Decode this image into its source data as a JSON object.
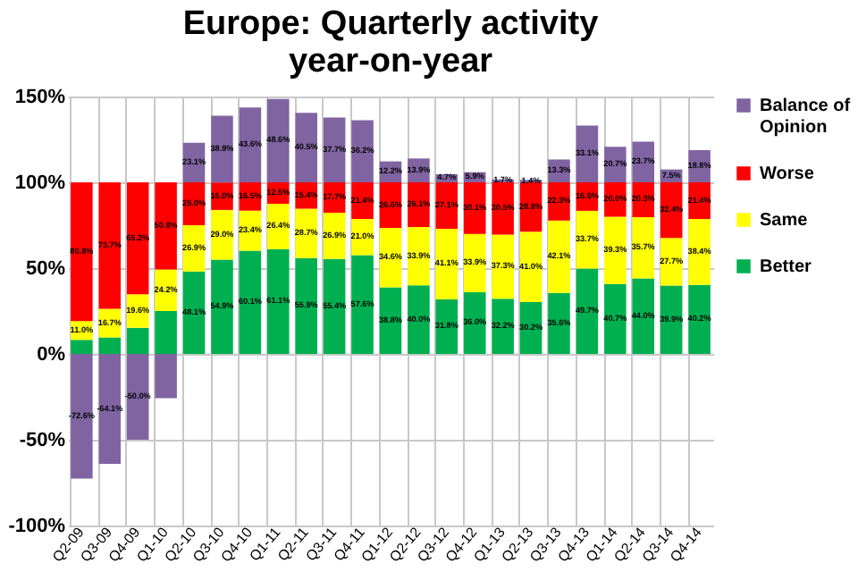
{
  "chart_data": {
    "type": "bar",
    "stacked": true,
    "title": "Europe: Quarterly activity year-on-year",
    "categories": [
      "Q2-09",
      "Q3-09",
      "Q4-09",
      "Q1-10",
      "Q2-10",
      "Q3-10",
      "Q4-10",
      "Q1-11",
      "Q2-11",
      "Q3-11",
      "Q4-11",
      "Q1-12",
      "Q2-12",
      "Q3-12",
      "Q4-12",
      "Q1-13",
      "Q2-13",
      "Q3-13",
      "Q4-13",
      "Q1-14",
      "Q2-14",
      "Q3-14",
      "Q4-14"
    ],
    "series": [
      {
        "name": "Better",
        "color": "#00b050",
        "values": [
          8.2,
          9.6,
          15.2,
          25.0,
          48.1,
          54.9,
          60.1,
          61.1,
          55.9,
          55.4,
          57.6,
          38.8,
          40.0,
          31.8,
          36.0,
          32.2,
          30.2,
          35.6,
          49.7,
          40.7,
          44.0,
          39.9,
          40.2
        ],
        "value_labels": [
          null,
          null,
          null,
          null,
          "48.1%",
          "54.9%",
          "60.1%",
          "61.1%",
          "55.9%",
          "55.4%",
          "57.6%",
          "38.8%",
          "40.0%",
          "31.8%",
          "36.0%",
          "32.2%",
          "30.2%",
          "35.6%",
          "49.7%",
          "40.7%",
          "44.0%",
          "39.9%",
          "40.2%"
        ]
      },
      {
        "name": "Same",
        "color": "#ffff00",
        "values": [
          11.0,
          16.7,
          19.6,
          24.2,
          26.9,
          29.0,
          23.4,
          26.4,
          28.7,
          26.9,
          21.0,
          34.6,
          33.9,
          41.1,
          33.9,
          37.3,
          41.0,
          42.1,
          33.7,
          39.3,
          35.7,
          27.7,
          38.4
        ],
        "value_labels": [
          "11.0%",
          "16.7%",
          "19.6%",
          "24.2%",
          "26.9%",
          "29.0%",
          "23.4%",
          "26.4%",
          "28.7%",
          "26.9%",
          "21.0%",
          "34.6%",
          "33.9%",
          "41.1%",
          "33.9%",
          "37.3%",
          "41.0%",
          "42.1%",
          "33.7%",
          "39.3%",
          "35.7%",
          "27.7%",
          "38.4%"
        ]
      },
      {
        "name": "Worse",
        "color": "#ff0000",
        "values": [
          80.8,
          73.7,
          65.2,
          50.8,
          25.0,
          16.0,
          16.5,
          12.5,
          15.4,
          17.7,
          21.4,
          26.6,
          26.1,
          27.1,
          30.1,
          30.5,
          28.8,
          22.3,
          16.6,
          20.0,
          20.3,
          32.4,
          21.4
        ],
        "value_labels": [
          "80.8%",
          "73.7%",
          "65.2%",
          "50.8%",
          "25.0%",
          "16.0%",
          "16.5%",
          "12.5%",
          "15.4%",
          "17.7%",
          "21.4%",
          "26.6%",
          "26.1%",
          "27.1%",
          "30.1%",
          "30.5%",
          "28.8%",
          "22.3%",
          "16.6%",
          "20.0%",
          "20.3%",
          "32.4%",
          "21.4%"
        ]
      },
      {
        "name": "Balance of Opinion",
        "color": "#8064a2",
        "values": [
          -72.6,
          -64.1,
          -50.0,
          -25.8,
          23.1,
          38.9,
          43.6,
          48.6,
          40.5,
          37.7,
          36.2,
          12.2,
          13.9,
          4.7,
          5.9,
          1.7,
          1.4,
          13.3,
          33.1,
          20.7,
          23.7,
          7.5,
          18.8
        ],
        "value_labels": [
          "-72.6%",
          "-64.1%",
          "-50.0%",
          null,
          "23.1%",
          "38.9%",
          "43.6%",
          "48.6%",
          "40.5%",
          "37.7%",
          "36.2%",
          "12.2%",
          "13.9%",
          "4.7%",
          "5.9%",
          "1.7%",
          "1.4%",
          "13.3%",
          "33.1%",
          "20.7%",
          "23.7%",
          "7.5%",
          "18.8%"
        ]
      }
    ],
    "ylim": [
      -100,
      150
    ],
    "yticks": [
      {
        "value": -100,
        "label": "-100%"
      },
      {
        "value": -50,
        "label": "-50%"
      },
      {
        "value": 0,
        "label": "0%"
      },
      {
        "value": 50,
        "label": "50%"
      },
      {
        "value": 100,
        "label": "100%"
      },
      {
        "value": 150,
        "label": "150%"
      }
    ],
    "grid": true,
    "legend": "right"
  }
}
